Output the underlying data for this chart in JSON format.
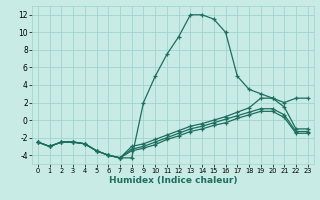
{
  "xlabel": "Humidex (Indice chaleur)",
  "xlim": [
    -0.5,
    23.5
  ],
  "ylim": [
    -5,
    13
  ],
  "yticks": [
    -4,
    -2,
    0,
    2,
    4,
    6,
    8,
    10,
    12
  ],
  "xticks": [
    0,
    1,
    2,
    3,
    4,
    5,
    6,
    7,
    8,
    9,
    10,
    11,
    12,
    13,
    14,
    15,
    16,
    17,
    18,
    19,
    20,
    21,
    22,
    23
  ],
  "background_color": "#c8ebe6",
  "grid_color": "#a0d4cc",
  "line_color": "#1e6e5e",
  "series": [
    {
      "x": [
        0,
        1,
        2,
        3,
        4,
        5,
        6,
        7,
        8,
        9,
        10,
        11,
        12,
        13,
        14,
        15,
        16,
        17,
        18,
        19,
        20,
        21,
        22,
        23
      ],
      "y": [
        -2.5,
        -3.0,
        -2.5,
        -2.5,
        -2.7,
        -3.5,
        -4.0,
        -4.3,
        -4.3,
        2.0,
        5.0,
        7.5,
        9.5,
        12.0,
        12.0,
        11.5,
        10.0,
        5.0,
        3.5,
        3.0,
        2.5,
        2.0,
        2.5,
        2.5
      ]
    },
    {
      "x": [
        0,
        1,
        2,
        3,
        4,
        5,
        6,
        7,
        8,
        9,
        10,
        11,
        12,
        13,
        14,
        15,
        16,
        17,
        18,
        19,
        20,
        21,
        22,
        23
      ],
      "y": [
        -2.5,
        -3.0,
        -2.5,
        -2.5,
        -2.7,
        -3.5,
        -4.0,
        -4.3,
        -3.5,
        -3.2,
        -2.8,
        -2.2,
        -1.8,
        -1.3,
        -1.0,
        -0.6,
        -0.3,
        0.2,
        0.6,
        1.0,
        1.0,
        0.3,
        -1.5,
        -1.5
      ]
    },
    {
      "x": [
        0,
        1,
        2,
        3,
        4,
        5,
        6,
        7,
        8,
        9,
        10,
        11,
        12,
        13,
        14,
        15,
        16,
        17,
        18,
        19,
        20,
        21,
        22,
        23
      ],
      "y": [
        -2.5,
        -3.0,
        -2.5,
        -2.5,
        -2.7,
        -3.5,
        -4.0,
        -4.3,
        -3.3,
        -3.0,
        -2.5,
        -2.0,
        -1.5,
        -1.0,
        -0.7,
        -0.3,
        0.1,
        0.5,
        0.9,
        1.3,
        1.3,
        0.6,
        -1.3,
        -1.3
      ]
    },
    {
      "x": [
        0,
        1,
        2,
        3,
        4,
        5,
        6,
        7,
        8,
        9,
        10,
        11,
        12,
        13,
        14,
        15,
        16,
        17,
        18,
        19,
        20,
        21,
        22,
        23
      ],
      "y": [
        -2.5,
        -3.0,
        -2.5,
        -2.5,
        -2.7,
        -3.5,
        -4.0,
        -4.3,
        -3.0,
        -2.7,
        -2.2,
        -1.7,
        -1.2,
        -0.7,
        -0.4,
        0.0,
        0.4,
        0.9,
        1.4,
        2.5,
        2.5,
        1.5,
        -1.0,
        -1.0
      ]
    }
  ]
}
